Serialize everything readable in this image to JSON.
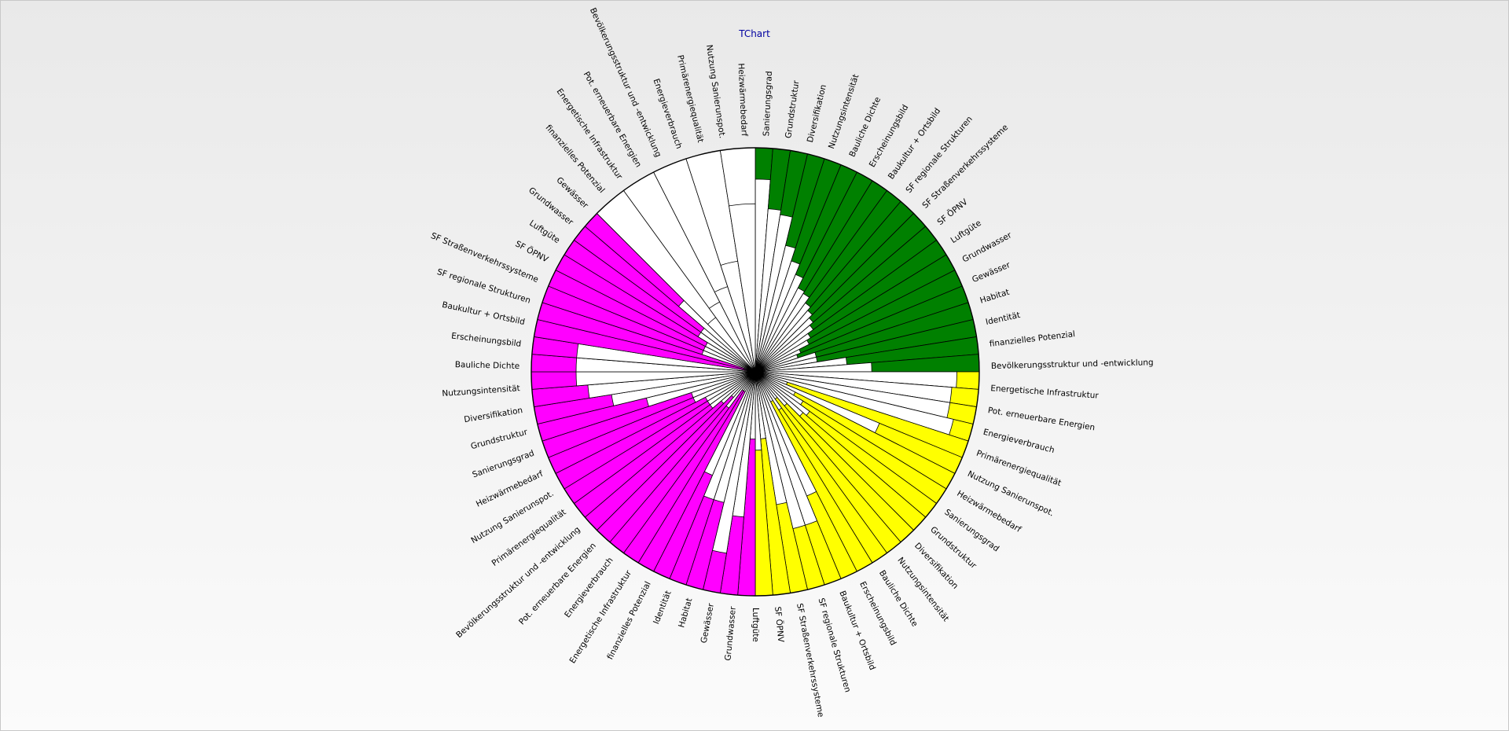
{
  "chart_data": {
    "type": "bar",
    "subtype": "polar-radial-bar",
    "title": "TChart",
    "grid": false,
    "legend": "none",
    "theta_direction": "clockwise",
    "start_angle_deg": 0,
    "rlim": [
      0,
      1
    ],
    "sectors": [
      {
        "name": "green",
        "color": "#008000",
        "start_deg": 0,
        "count": 20,
        "categories": [
          "Sanierungsgrad",
          "Grundstruktur",
          "Diversifikation",
          "Nutzungsintensität",
          "Bauliche Dichte",
          "Erscheinungsbild",
          "Baukultur + Ortsbild",
          "SF regionale Strukturen",
          "SF Straßenverkehrssysteme",
          "SF ÖPNV",
          "Luftgüte",
          "Grundwasser",
          "Gewässer",
          "Habitat",
          "Identität",
          "finanzielles Potenzial",
          "Bevölkerungsstruktur und -entwicklung",
          "Energetische Infrastruktur",
          "Pot. erneuerbare Energien",
          "Energieverbrauch"
        ],
        "values": [
          0.86,
          0.73,
          0.71,
          0.58,
          0.52,
          0.47,
          0.42,
          0.41,
          0.38,
          0.36,
          0.34,
          0.32,
          0.29,
          0.27,
          0.22,
          0.2,
          0.28,
          0.28,
          0.41,
          0.52
        ]
      },
      {
        "name": "yellow",
        "color": "#ffff00",
        "start_deg": 90,
        "count": 20,
        "categories": [
          "Primärenergiequalität",
          "Nutzung Sanierunspot.",
          "Heizwärmebedarf",
          "Sanierungsgrad",
          "Grundstruktur",
          "Diversifikation",
          "Nutzungsintensität",
          "Bauliche Dichte",
          "Erscheinungsbild",
          "Baukultur + Ortsbild",
          "SF regionale Strukturen",
          "SF Straßenverkehrssysteme",
          "SF ÖPNV",
          "Luftgüte",
          "Gewässer",
          "Grundwasser",
          "Habitat",
          "Identität",
          "finanzielles Potenzial",
          "Energetische Infrastruktur"
        ],
        "values": [
          0.9,
          0.88,
          0.88,
          0.91,
          0.15,
          0.6,
          0.2,
          0.25,
          0.3,
          0.28,
          0.2,
          0.15,
          0.2,
          0.15,
          0.6,
          0.72,
          0.72,
          0.6,
          0.3,
          0.35
        ]
      },
      {
        "name": "magenta",
        "color": "#ff00ff",
        "start_deg": 180,
        "count": 30,
        "categories": [
          "finanzielles Potenzial",
          "Identität",
          "Habitat",
          "Gewässer",
          "Grundwasser",
          "Luftgüte",
          "SF ÖPNV",
          "SF Straßenverkehrssysteme",
          "SF regionale Strukturen",
          "Baukultur + Ortsbild",
          "Erscheinungsbild",
          "Bauliche Dichte",
          "Nutzungsintensität",
          "Diversifikation",
          "Grundstruktur",
          "Sanierungsgrad",
          "Heizwärmebedarf",
          "Nutzung Sanierunspot.",
          "Primärenergiequalität",
          "Energieverbrauch",
          "Pot. erneuerbare Energien",
          "Energetische Infrastruktur",
          "Bevölkerungsstruktur und -entwicklung",
          "finanzielles Potenzial",
          "Gewässer",
          "Grundwasser",
          "Luftgüte",
          "SF ÖPNV",
          "Nutzung Sanierunspot.",
          "Heizwärmebedarf"
        ],
        "values": [
          0.3,
          0.65,
          0.82,
          0.6,
          0.6,
          0.5,
          0.1,
          0.1,
          0.2,
          0.15,
          0.2,
          0.25,
          0.25,
          0.25,
          0.3,
          0.3,
          0.5,
          0.65,
          0.75,
          0.8,
          0.8,
          0.8,
          0.0,
          0.05,
          0.25,
          0.25,
          0.25,
          0.3,
          0.3,
          0.45
        ]
      },
      {
        "name": "white",
        "color": "#ffffff",
        "start_deg": 315,
        "count": 5,
        "categories": [
          "Gewässer",
          "Bevölkerungsstruktur und -entwicklung",
          "Energieverbrauch",
          "Primärenergiequalität",
          "Heizwärmebedarf"
        ],
        "values": [
          0.3,
          0.35,
          0.4,
          0.5,
          0.75
        ]
      }
    ],
    "tick_labels": [
      "Sanierungsgrad",
      "Grundstruktur",
      "Diversifikation",
      "Nutzungsintensität",
      "Bauliche Dichte",
      "Erscheinungsbild",
      "Baukultur + Ortsbild",
      "SF regionale Strukturen",
      "SF Straßenverkehrssysteme",
      "SF ÖPNV",
      "Luftgüte",
      "Grundwasser",
      "Gewässer",
      "Habitat",
      "Identität",
      "finanzielles Potenzial",
      "Bevölkerungsstruktur und -entwicklung",
      "Energetische Infrastruktur",
      "Pot. erneuerbare Energien",
      "Energieverbrauch",
      "Primärenergiequalität",
      "Nutzung Sanierunspot.",
      "Heizwärmebedarf",
      "Sanierungsgrad",
      "Grundstruktur",
      "Diversifikation",
      "Nutzungsintensität",
      "Bauliche Dichte",
      "Erscheinungsbild",
      "Baukultur + Ortsbild",
      "SF regionale Strukturen",
      "SF Straßenverkehrssysteme",
      "SF ÖPNV",
      "Luftgüte",
      "Grundwasser",
      "Gewässer",
      "Habitat",
      "Identität",
      "finanzielles Potenzial",
      "Energetische Infrastruktur",
      "Energieverbrauch",
      "Pot. erneuerbare Energien",
      "Bevölkerungsstruktur und -entwicklung",
      "Primärenergiequalität",
      "Nutzung Sanierunspot.",
      "Heizwärmebedarf",
      "Sanierungsgrad",
      "Grundstruktur",
      "Diversifikation",
      "Nutzungsintensität",
      "Bauliche Dichte",
      "Erscheinungsbild",
      "Baukultur + Ortsbild",
      "SF regionale Strukturen",
      "SF Straßenverkehrssysteme",
      "SF ÖPNV",
      "Luftgüte",
      "Grundwasser",
      "Gewässer",
      "finanzielles Potenzial",
      "Energetische Infrastruktur",
      "Pot. erneuerbare Energien",
      "Bevölkerungsstruktur und -entwicklung",
      "Energieverbrauch",
      "Primärenergiequalität",
      "Nutzung Sanierunspot.",
      "Heizwärmebedarf"
    ]
  }
}
